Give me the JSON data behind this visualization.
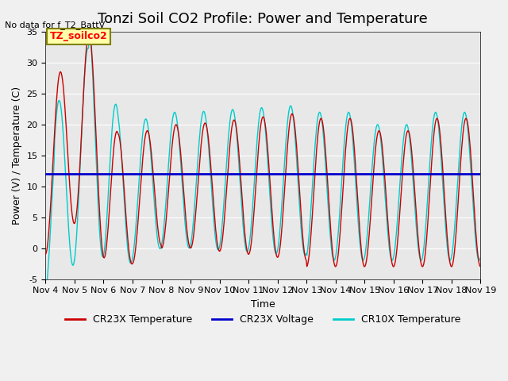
{
  "title": "Tonzi Soil CO2 Profile: Power and Temperature",
  "no_data_text": "No data for f_T2_BattV",
  "ylabel": "Power (V) / Temperature (C)",
  "xlabel": "Time",
  "ylim": [
    -5,
    35
  ],
  "xlim": [
    0,
    15
  ],
  "yticks": [
    -5,
    0,
    5,
    10,
    15,
    20,
    25,
    30,
    35
  ],
  "xtick_labels": [
    "Nov 4",
    "Nov 5",
    "Nov 6",
    "Nov 7",
    "Nov 8",
    "Nov 9",
    "Nov 10",
    "Nov 11",
    "Nov 12",
    "Nov 13",
    "Nov 14",
    "Nov 15",
    "Nov 16",
    "Nov 17",
    "Nov 18",
    "Nov 19"
  ],
  "voltage_value": 12.0,
  "legend_label_cr23x_temp": "CR23X Temperature",
  "legend_label_cr23x_volt": "CR23X Voltage",
  "legend_label_cr10x_temp": "CR10X Temperature",
  "color_cr23x_temp": "#cc0000",
  "color_cr23x_volt": "#0000cc",
  "color_cr10x_temp": "#00cccc",
  "bg_color": "#e8e8e8",
  "annotation_box_color": "#ffffaa",
  "annotation_text": "TZ_soilco2",
  "title_fontsize": 13,
  "label_fontsize": 9,
  "tick_fontsize": 8
}
